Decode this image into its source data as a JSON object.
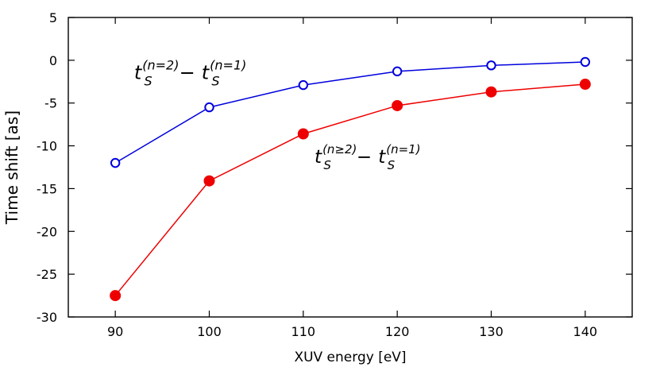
{
  "chart_data": {
    "type": "line",
    "xlabel": "XUV energy [eV]",
    "ylabel": "Time shift [as]",
    "xlim": [
      85,
      145
    ],
    "ylim": [
      -30,
      5
    ],
    "xticks": [
      90,
      100,
      110,
      120,
      130,
      140
    ],
    "yticks": [
      5,
      0,
      -5,
      -10,
      -15,
      -20,
      -25,
      -30
    ],
    "grid": false,
    "series": [
      {
        "marker": "open-circle",
        "color": "#0000dd",
        "x": [
          90,
          100,
          110,
          120,
          130,
          140
        ],
        "y": [
          -12.0,
          -5.5,
          -2.9,
          -1.3,
          -0.6,
          -0.2
        ]
      },
      {
        "marker": "filled-circle",
        "color": "#ee0000",
        "x": [
          90,
          100,
          110,
          120,
          130,
          140
        ],
        "y": [
          -27.5,
          -14.1,
          -8.6,
          -5.3,
          -3.7,
          -2.8
        ]
      }
    ],
    "annotations": [
      {
        "base1": "t",
        "sub1": "S",
        "sup1": "(n=2)",
        "minus": "−",
        "base2": "t",
        "sub2": "S",
        "sup2": "(n=1)",
        "x": 92,
        "y": -2.2,
        "size": "large"
      },
      {
        "base1": "t",
        "sub1": "S",
        "sup1": "(n≥2)",
        "minus": "−",
        "base2": "t",
        "sub2": "S",
        "sup2": "(n=1)",
        "x": 111.2,
        "y": -12.0,
        "size": "small"
      }
    ]
  }
}
